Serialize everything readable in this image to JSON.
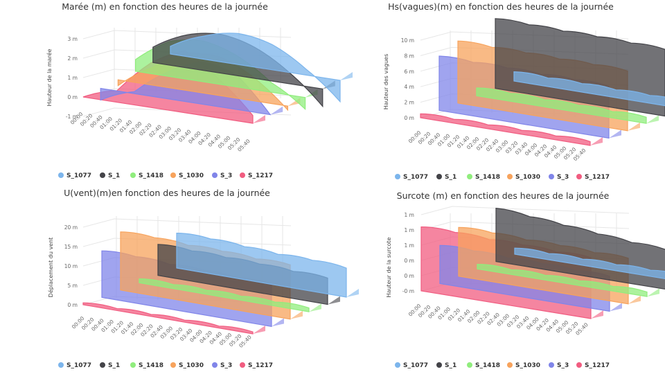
{
  "series_names": [
    "S_1077",
    "S_1",
    "S_1418",
    "S_1030",
    "S_3",
    "S_1217"
  ],
  "colors": [
    "#7cb5ec",
    "#434348",
    "#90ed7d",
    "#f7a35c",
    "#8085e9",
    "#f15c80"
  ],
  "x_ticks": [
    "00:00",
    "00:20",
    "00:40",
    "01:00",
    "01:20",
    "01:40",
    "02:00",
    "02:20",
    "02:40",
    "03:00",
    "03:20",
    "03:40",
    "04:00",
    "04:20",
    "04:40",
    "05:00",
    "05:20",
    "05:40"
  ],
  "chart_data": [
    {
      "type": "area",
      "title": "Marée (m) en fonction des heures de la journée",
      "ylabel": "Hauteur de la marée",
      "ytick_labels": [
        "-1 m",
        "0 m",
        "1 m",
        "2 m",
        "3 m"
      ],
      "ylim": [
        -1,
        3
      ],
      "series": [
        {
          "name": "S_1077",
          "values": [
            0.4,
            1.2,
            1.6,
            1.3,
            0.3,
            -1.1
          ]
        },
        {
          "name": "S_1",
          "values": [
            0.8,
            1.7,
            2.0,
            1.6,
            0.6,
            -0.9
          ]
        },
        {
          "name": "S_1418",
          "values": [
            0.6,
            1.8,
            2.1,
            1.6,
            0.5,
            -0.6
          ]
        },
        {
          "name": "S_1030",
          "values": [
            -0.3,
            0.9,
            1.9,
            2.0,
            1.2,
            -0.2
          ]
        },
        {
          "name": "S_3",
          "values": [
            -0.6,
            0.1,
            1.4,
            2.2,
            1.8,
            0.0
          ]
        },
        {
          "name": "S_1217",
          "values": [
            0.0,
            0.6,
            2.3,
            3.2,
            2.0,
            0.4
          ]
        }
      ]
    },
    {
      "type": "area",
      "title": "Hs(vagues)(m) en fonction des heures de la journée",
      "ylabel": "Hauteur des vagues",
      "ytick_labels": [
        "0 m",
        "2 m",
        "4 m",
        "6 m",
        "8 m",
        "10 m"
      ],
      "ylim": [
        0,
        10
      ],
      "series": [
        {
          "name": "S_1077",
          "values": [
            1.2,
            1.1,
            1.1,
            1.0,
            1.0,
            0.9
          ]
        },
        {
          "name": "S_1",
          "values": [
            9.0,
            8.9,
            8.8,
            8.8,
            8.7,
            8.6
          ]
        },
        {
          "name": "S_1418",
          "values": [
            1.0,
            1.0,
            0.9,
            0.9,
            0.8,
            0.8
          ]
        },
        {
          "name": "S_1030",
          "values": [
            8.0,
            7.9,
            7.9,
            7.8,
            7.8,
            7.7
          ]
        },
        {
          "name": "S_3",
          "values": [
            7.0,
            6.9,
            6.9,
            6.8,
            6.8,
            6.7
          ]
        },
        {
          "name": "S_1217",
          "values": [
            0.5,
            0.5,
            0.5,
            0.5,
            0.5,
            0.5
          ]
        }
      ]
    },
    {
      "type": "area",
      "title": "U(vent)(m)en fonction des heures de la journée",
      "ylabel": "Déplacement du vent",
      "ytick_labels": [
        "0 m",
        "5 m",
        "10 m",
        "15 m",
        "20 m"
      ],
      "ylim": [
        0,
        20
      ],
      "series": [
        {
          "name": "S_1077",
          "values": [
            9.0,
            9.0,
            8.5,
            8.0,
            8.0,
            7.5
          ]
        },
        {
          "name": "S_1",
          "values": [
            8.0,
            7.8,
            7.6,
            7.4,
            7.0,
            6.8
          ]
        },
        {
          "name": "S_1418",
          "values": [
            1.0,
            1.0,
            1.0,
            1.0,
            1.0,
            1.0
          ]
        },
        {
          "name": "S_1030",
          "values": [
            15.0,
            15.0,
            14.5,
            14.5,
            14.0,
            14.0
          ]
        },
        {
          "name": "S_3",
          "values": [
            12.0,
            12.0,
            11.5,
            11.5,
            11.0,
            11.0
          ]
        },
        {
          "name": "S_1217",
          "values": [
            0.5,
            0.5,
            0.5,
            0.5,
            0.5,
            0.5
          ]
        }
      ]
    },
    {
      "type": "area",
      "title": "Surcote (m) en fonction des heures de la journée",
      "ylabel": "Hauteur de la surcote",
      "ytick_labels": [
        "-0 m",
        "0 m",
        "0 m",
        "1 m",
        "1 m",
        "1 m"
      ],
      "ylim": [
        0,
        5
      ],
      "series": [
        {
          "name": "S_1077",
          "values": [
            0.4,
            0.4,
            0.4,
            0.4,
            0.4,
            0.4
          ]
        },
        {
          "name": "S_1",
          "values": [
            3.5,
            3.3,
            3.1,
            2.9,
            2.7,
            2.6
          ]
        },
        {
          "name": "S_1418",
          "values": [
            0.3,
            0.3,
            0.3,
            0.3,
            0.3,
            0.3
          ]
        },
        {
          "name": "S_1030",
          "values": [
            3.2,
            3.2,
            3.1,
            3.1,
            3.0,
            3.0
          ]
        },
        {
          "name": "S_3",
          "values": [
            2.5,
            2.5,
            2.4,
            2.4,
            2.3,
            2.3
          ]
        },
        {
          "name": "S_1217",
          "values": [
            4.2,
            4.2,
            4.1,
            4.1,
            4.0,
            4.0
          ]
        }
      ]
    }
  ]
}
